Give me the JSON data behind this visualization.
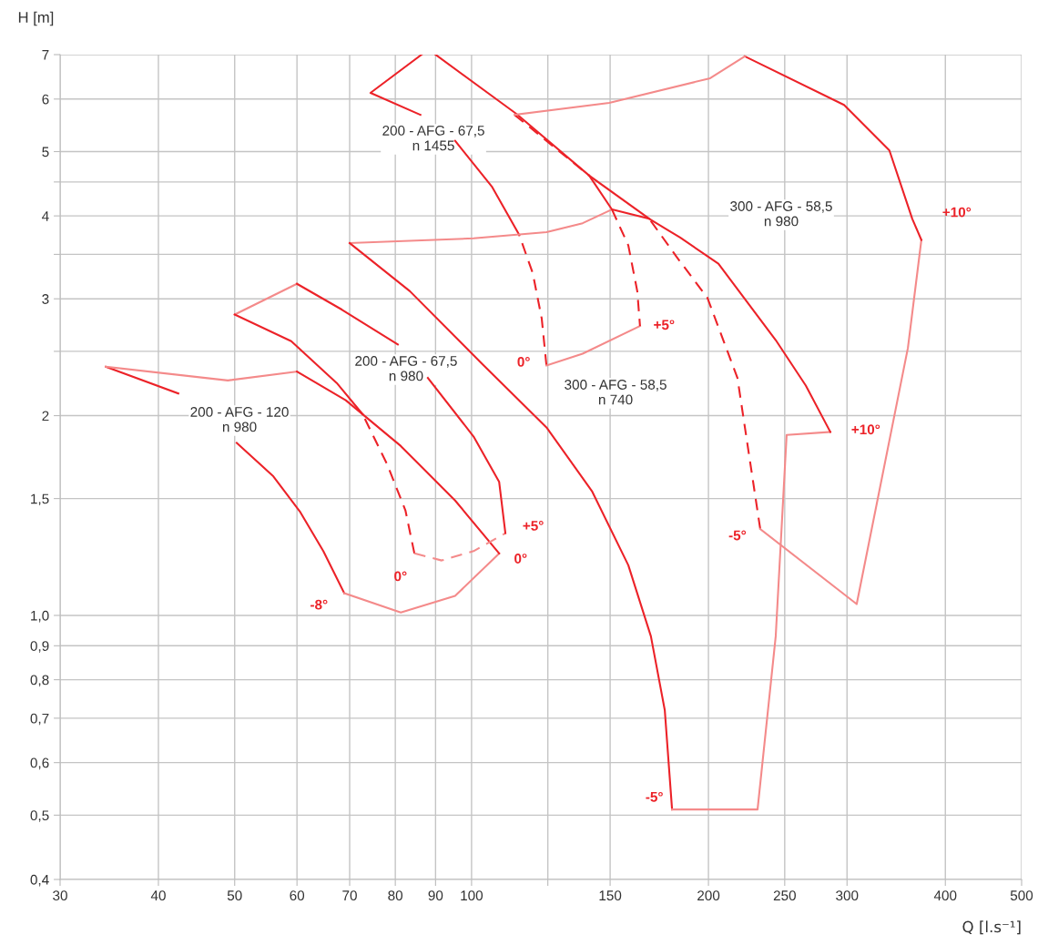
{
  "chart_data": {
    "type": "line",
    "xlabel": "Q [l.s⁻¹]",
    "ylabel": "H [m]",
    "log": "xy",
    "grid": true,
    "legend": false,
    "marker": "none",
    "xlim": [
      30,
      500
    ],
    "ylim": [
      0.4,
      7
    ],
    "xticks": [
      30,
      40,
      50,
      60,
      70,
      80,
      90,
      100,
      {
        "value": 125,
        "label": null
      },
      150,
      200,
      250,
      300,
      400,
      500
    ],
    "yticks": [
      {
        "value": 0.4,
        "label": "0,4"
      },
      {
        "value": 0.5,
        "label": "0,5"
      },
      {
        "value": 0.6,
        "label": "0,6"
      },
      {
        "value": 0.7,
        "label": "0,7"
      },
      {
        "value": 0.8,
        "label": "0,8"
      },
      {
        "value": 0.9,
        "label": "0,9"
      },
      {
        "value": 1,
        "label": "1,0"
      },
      {
        "value": 1.5,
        "label": "1,5"
      },
      2,
      {
        "value": 2.5,
        "label": null
      },
      3,
      {
        "value": 3.5,
        "label": null
      },
      4,
      {
        "value": 4.5,
        "label": null
      },
      5,
      6,
      7
    ],
    "annotations": [
      "200 - AFG - 120\nn 980",
      "200 - AFG - 67,5\nn 980",
      "200 - AFG - 67,5\nn 1455",
      "300 - AFG - 58,5\nn 740",
      "300 - AFG - 58,5\nn 980",
      {
        "text": "-8°",
        "x": 68.9,
        "y": 1.08
      },
      {
        "text": "0°",
        "x": 84.6,
        "y": 1.24
      },
      {
        "text": "+5°",
        "x": 110.4,
        "y": 1.33
      },
      {
        "text": "0°",
        "x": 108.4,
        "y": 1.24
      },
      {
        "text": "0°",
        "x": 124.5,
        "y": 2.38
      },
      {
        "text": "+5°",
        "x": 163.7,
        "y": 2.73
      },
      {
        "text": "-5°",
        "x": 179.8,
        "y": 0.51
      },
      {
        "text": "+10°",
        "x": 285.7,
        "y": 1.89
      },
      {
        "text": "-5°",
        "x": 232.7,
        "y": 1.35
      },
      {
        "text": "+10°",
        "x": 372.9,
        "y": 3.68
      }
    ],
    "series": [
      {
        "color": "#ec2228",
        "line_style": "solid",
        "x": [
          68.9,
          64.8,
          60.6,
          56.0,
          50.3,
          46.0,
          42.4,
          34.3
        ],
        "values": [
          1.08,
          1.25,
          1.43,
          1.62,
          1.82,
          null,
          2.16,
          2.37
        ]
      },
      {
        "color": "#f48a8a",
        "line_style": "solid",
        "x": [
          34.3,
          49.0,
          60
        ],
        "values": [
          2.37,
          2.26,
          2.33
        ]
      },
      {
        "color": "#f48a8a",
        "line_style": "solid",
        "x": [
          68.9,
          81.3,
          95.3,
          108.4
        ],
        "values": [
          1.08,
          1.01,
          1.07,
          1.24
        ]
      },
      {
        "color": "#ec2228",
        "line_style": "solid",
        "x": [
          60,
          69.2,
          81.3,
          95.3,
          108.4
        ],
        "values": [
          2.33,
          2.11,
          1.8,
          1.49,
          1.24
        ]
      },
      {
        "color": "#f48a8a",
        "line_style": "solid",
        "x": [
          50,
          60
        ],
        "values": [
          2.84,
          3.16
        ]
      },
      {
        "color": "#ec2228",
        "line_style": "solid",
        "x": [
          50,
          59.0,
          67.4,
          72.7
        ],
        "values": [
          2.84,
          2.59,
          2.24,
          2.01
        ]
      },
      {
        "color": "#ec2228",
        "line_style": "dashed",
        "x": [
          84.6,
          82.4,
          78.1,
          72.7
        ],
        "values": [
          1.24,
          1.44,
          1.69,
          2.01
        ]
      },
      {
        "color": "#f48a8a",
        "line_style": "dashed",
        "x": [
          84.6,
          91.6,
          100.6,
          110.4
        ],
        "values": [
          1.24,
          1.21,
          1.25,
          1.33
        ]
      },
      {
        "color": "#ec2228",
        "line_style": "solid",
        "x": [
          60,
          68.4,
          80.6,
          84.6,
          88.0,
          100.6,
          108.4,
          110.4
        ],
        "values": [
          3.16,
          2.89,
          2.56,
          null,
          2.28,
          1.86,
          1.59,
          1.33
        ]
      },
      {
        "color": "#ec2228",
        "line_style": "solid",
        "x": [
          86.4,
          74.4,
          86.1,
          90,
          95.3,
          106.1,
          114.9
        ],
        "values": [
          7.0,
          6.13,
          5.68,
          null,
          5.19,
          4.43,
          3.75
        ]
      },
      {
        "color": "#ec2228",
        "line_style": "dashed",
        "x": [
          124.5,
          122.8,
          119.6,
          114.9
        ],
        "values": [
          2.38,
          2.8,
          3.28,
          3.75
        ]
      },
      {
        "color": "#f48a8a",
        "line_style": "solid",
        "x": [
          124.5,
          138.4,
          163.7
        ],
        "values": [
          2.38,
          2.48,
          2.73
        ]
      },
      {
        "color": "#ec2228",
        "line_style": "dashed",
        "x": [
          150.8,
          158.2,
          162.4,
          163.7
        ],
        "values": [
          4.09,
          3.61,
          3.08,
          2.73
        ]
      },
      {
        "color": "#ec2228",
        "line_style": "solid",
        "x": [
          90,
          114.0,
          141.1,
          150.8
        ],
        "values": [
          7.0,
          5.7,
          4.6,
          4.09
        ]
      },
      {
        "color": "#f48a8a",
        "line_style": "solid",
        "x": [
          70,
          100.6,
          124.5,
          138.4,
          150.8
        ],
        "values": [
          3.64,
          3.7,
          3.78,
          3.9,
          4.09
        ]
      },
      {
        "color": "#ec2228",
        "line_style": "solid",
        "x": [
          179.8,
          176.0,
          169.0,
          158.2,
          142.2,
          124.5,
          103.3,
          83.5,
          70
        ],
        "values": [
          0.51,
          0.72,
          0.93,
          1.19,
          1.54,
          1.92,
          2.39,
          3.08,
          3.64
        ]
      },
      {
        "color": "#f48a8a",
        "line_style": "solid",
        "x": [
          179.8,
          230.9,
          243.5,
          251.4,
          285.7
        ],
        "values": [
          0.51,
          0.51,
          0.93,
          1.87,
          1.89
        ]
      },
      {
        "color": "#ec2228",
        "line_style": "solid",
        "x": [
          150.8,
          168.2,
          184.1,
          205.9,
          243.5,
          265.9,
          285.7
        ],
        "values": [
          4.09,
          3.96,
          3.71,
          3.39,
          2.6,
          2.22,
          1.89
        ]
      },
      {
        "color": "#ec2228",
        "line_style": "solid",
        "x": [
          141.1,
          168.2
        ],
        "values": [
          4.6,
          3.96
        ]
      },
      {
        "color": "#ec2228",
        "line_style": "dashed",
        "x": [
          113.4,
          141.1
        ],
        "values": [
          5.68,
          4.6
        ]
      },
      {
        "color": "#ec2228",
        "line_style": "dashed",
        "x": [
          232.7,
          217.7,
          199.4,
          182.2,
          168.2
        ],
        "values": [
          1.35,
          2.28,
          3.01,
          3.47,
          3.96
        ]
      },
      {
        "color": "#f48a8a",
        "line_style": "solid",
        "x": [
          232.7,
          308.6,
          358.5,
          372.9
        ],
        "values": [
          1.35,
          1.04,
          2.53,
          3.68
        ]
      },
      {
        "color": "#ec2228",
        "line_style": "solid",
        "x": [
          222.4,
          297.4,
          339.6,
          363.1,
          372.9
        ],
        "values": [
          6.96,
          5.88,
          5.02,
          3.96,
          3.68
        ]
      },
      {
        "color": "#f48a8a",
        "line_style": "solid",
        "x": [
          113.4,
          149.6,
          201.0,
          222.4
        ],
        "values": [
          5.68,
          5.92,
          6.45,
          6.96
        ]
      }
    ]
  }
}
